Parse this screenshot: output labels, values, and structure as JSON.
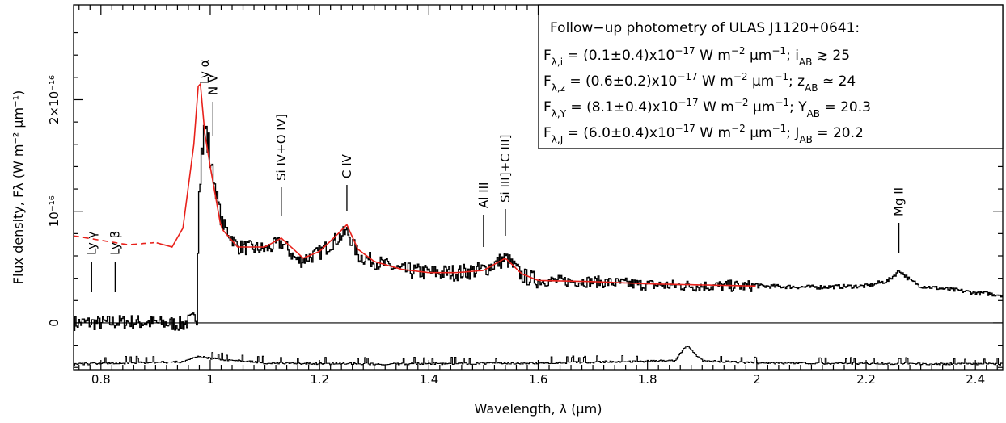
{
  "chart_data": {
    "type": "line",
    "xlabel": "Wavelength, λ (μm)",
    "ylabel": "Flux density, Fλ (W m⁻² μm⁻¹)",
    "xlim": [
      0.75,
      2.45
    ],
    "ylim": [
      -4.2e-17,
      2.85e-16
    ],
    "x_ticks": [
      0.8,
      1.0,
      1.2,
      1.4,
      1.6,
      1.8,
      2.0,
      2.2,
      2.4
    ],
    "x_tick_labels": [
      "0.8",
      "1",
      "1.2",
      "1.4",
      "1.6",
      "1.8",
      "2",
      "2.2",
      "2.4"
    ],
    "y_ticks": [
      0,
      1e-16,
      2e-16
    ],
    "y_tick_labels": [
      "0",
      "10⁻¹⁶",
      "2×10⁻¹⁶"
    ],
    "colors": {
      "spectrum": "#000000",
      "template": "#e8211b",
      "error": "#000000"
    },
    "series": [
      {
        "role": "observed_spectrum",
        "x": [
          0.75,
          0.8,
          0.85,
          0.9,
          0.95,
          0.975,
          0.978,
          0.985,
          0.99,
          1.0,
          1.02,
          1.05,
          1.1,
          1.13,
          1.16,
          1.2,
          1.23,
          1.25,
          1.27,
          1.3,
          1.35,
          1.4,
          1.45,
          1.5,
          1.54,
          1.57,
          1.6,
          1.7,
          1.8,
          1.9,
          2.0,
          2.1,
          2.2,
          2.24,
          2.26,
          2.28,
          2.3,
          2.35,
          2.4,
          2.45
        ],
        "y": [
          0.0,
          0.0,
          0.01,
          0.0,
          -0.01,
          0.05,
          1.3,
          1.6,
          1.75,
          1.45,
          0.9,
          0.68,
          0.66,
          0.72,
          0.55,
          0.63,
          0.75,
          0.82,
          0.6,
          0.55,
          0.47,
          0.45,
          0.45,
          0.48,
          0.58,
          0.42,
          0.38,
          0.37,
          0.34,
          0.33,
          0.33,
          0.32,
          0.33,
          0.38,
          0.47,
          0.38,
          0.33,
          0.3,
          0.27,
          0.25
        ],
        "y_scale": 1e-16
      },
      {
        "role": "composite_template",
        "x": [
          0.75,
          0.8,
          0.85,
          0.9,
          0.93,
          0.95,
          0.97,
          0.98,
          0.99,
          1.0,
          1.02,
          1.05,
          1.1,
          1.13,
          1.17,
          1.2,
          1.23,
          1.25,
          1.27,
          1.3,
          1.35,
          1.4,
          1.45,
          1.5,
          1.54,
          1.57,
          1.6,
          1.7,
          1.8,
          1.9,
          2.0
        ],
        "y": [
          0.78,
          0.74,
          0.7,
          0.72,
          0.68,
          0.85,
          1.6,
          2.25,
          1.7,
          1.4,
          0.85,
          0.68,
          0.68,
          0.76,
          0.58,
          0.64,
          0.78,
          0.88,
          0.66,
          0.55,
          0.48,
          0.45,
          0.45,
          0.47,
          0.58,
          0.44,
          0.38,
          0.37,
          0.35,
          0.34,
          0.33
        ],
        "y_scale": 1e-16,
        "dashed_below": 0.9
      },
      {
        "role": "noise",
        "x": [
          0.75,
          0.95,
          0.98,
          1.0,
          1.1,
          1.3,
          1.6,
          1.85,
          1.87,
          1.9,
          2.0,
          2.45
        ],
        "y": [
          -0.37,
          -0.35,
          -0.3,
          -0.32,
          -0.36,
          -0.37,
          -0.36,
          -0.34,
          -0.2,
          -0.34,
          -0.36,
          -0.37
        ],
        "y_scale": 1e-16
      }
    ],
    "line_labels": [
      {
        "text": "Ly γ",
        "x": 0.783
      },
      {
        "text": "Ly β",
        "x": 0.826
      },
      {
        "text": "Ly α",
        "x": 0.99
      },
      {
        "text": "N V",
        "x": 1.005
      },
      {
        "text": "Si IV+O IV]",
        "x": 1.13
      },
      {
        "text": "C IV",
        "x": 1.25
      },
      {
        "text": "Al III",
        "x": 1.5
      },
      {
        "text": "Si III]+C III]",
        "x": 1.54
      },
      {
        "text": "Mg II",
        "x": 2.26
      }
    ]
  },
  "legend": {
    "title": "Follow−up photometry of ULAS J1120+0641:",
    "rows": [
      {
        "flux_sub": "λ,i",
        "value": "(0.1±0.4)",
        "exp": "−17",
        "mag_sub": "AB",
        "mag_letter": "i",
        "relation": "≳",
        "mag": "25"
      },
      {
        "flux_sub": "λ,z",
        "value": "(0.6±0.2)",
        "exp": "−17",
        "mag_sub": "AB",
        "mag_letter": "z",
        "relation": "≃",
        "mag": "24"
      },
      {
        "flux_sub": "λ,Y",
        "value": "(8.1±0.4)",
        "exp": "−17",
        "mag_sub": "AB",
        "mag_letter": "Y",
        "relation": "=",
        "mag": "20.3"
      },
      {
        "flux_sub": "λ,J",
        "value": "(6.0±0.4)",
        "exp": "−17",
        "mag_sub": "AB",
        "mag_letter": "J",
        "relation": "=",
        "mag": "20.2"
      }
    ]
  }
}
